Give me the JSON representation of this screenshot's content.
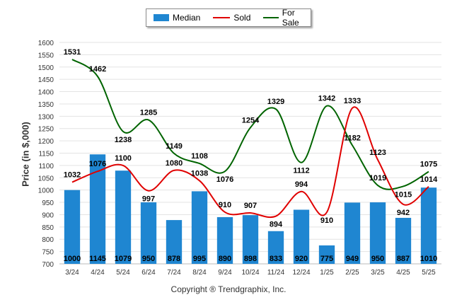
{
  "chart_data": {
    "type": "bar",
    "ylabel": "Price (in $,000)",
    "ylim": [
      700,
      1600
    ],
    "yticks": [
      700,
      750,
      800,
      850,
      900,
      950,
      1000,
      1050,
      1100,
      1150,
      1200,
      1250,
      1300,
      1350,
      1400,
      1450,
      1500,
      1550,
      1600
    ],
    "grid": true,
    "legend_position": "top-center",
    "categories": [
      "3/24",
      "4/24",
      "5/24",
      "6/24",
      "7/24",
      "8/24",
      "9/24",
      "10/24",
      "11/24",
      "12/24",
      "1/25",
      "2/25",
      "3/25",
      "4/25",
      "5/25"
    ],
    "series": [
      {
        "name": "Median",
        "kind": "bar",
        "color": "#1f86d1",
        "values": [
          1000,
          1145,
          1079,
          950,
          878,
          995,
          890,
          898,
          833,
          920,
          775,
          949,
          950,
          887,
          1010
        ]
      },
      {
        "name": "Sold",
        "kind": "line",
        "color": "#e00000",
        "values": [
          1032,
          1076,
          1100,
          997,
          1080,
          1038,
          910,
          907,
          894,
          994,
          910,
          1333,
          1123,
          942,
          1014
        ]
      },
      {
        "name": "For Sale",
        "kind": "line",
        "color": "#006400",
        "values": [
          1531,
          1462,
          1238,
          1285,
          1149,
          1108,
          1076,
          1254,
          1329,
          1112,
          1342,
          1182,
          1019,
          1015,
          1075
        ]
      }
    ]
  },
  "legend": {
    "median": "Median",
    "sold": "Sold",
    "for_sale": "For Sale"
  },
  "footer": {
    "copyright": "Copyright ® Trendgraphix, Inc."
  }
}
